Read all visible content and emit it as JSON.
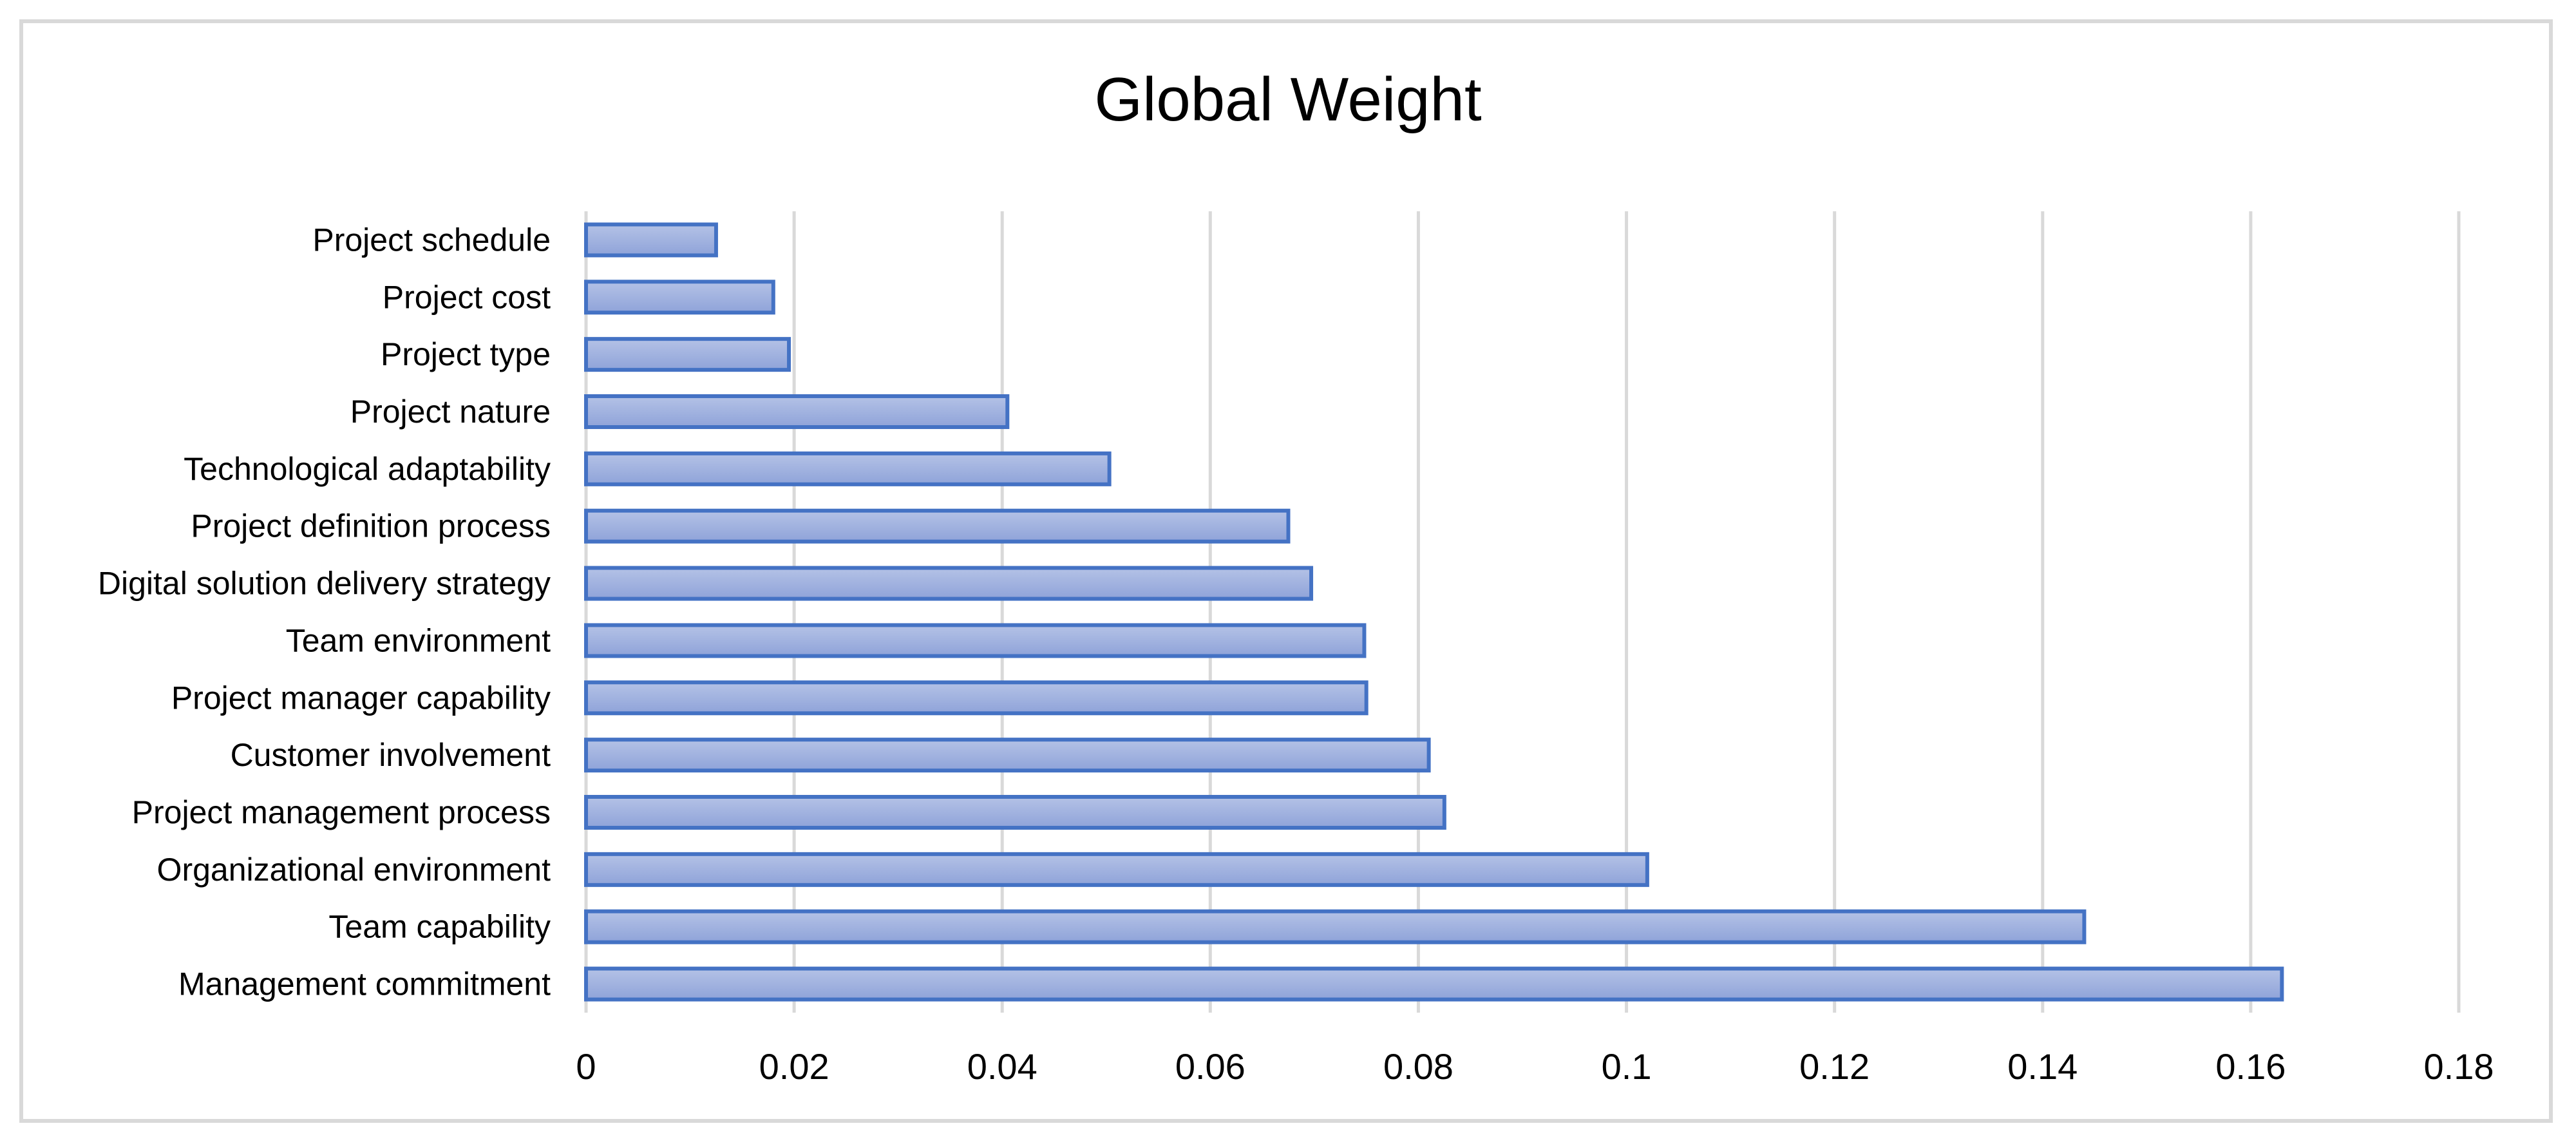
{
  "chart_data": {
    "type": "bar",
    "orientation": "horizontal",
    "title": "Global Weight",
    "xlabel": "",
    "ylabel": "",
    "categories": [
      "Project schedule",
      "Project cost",
      "Project type",
      "Project nature",
      "Technological adaptability",
      "Project definition process",
      "Digital solution delivery strategy",
      "Team environment",
      "Project manager capability",
      "Customer involvement",
      "Project management process",
      "Organizational environment",
      "Team capability",
      "Management commitment"
    ],
    "values": [
      0.0125,
      0.018,
      0.0195,
      0.0405,
      0.0503,
      0.0675,
      0.0697,
      0.0748,
      0.075,
      0.081,
      0.0825,
      0.102,
      0.144,
      0.163
    ],
    "xlim": [
      0,
      0.18
    ],
    "x_ticks": [
      "0",
      "0.02",
      "0.04",
      "0.06",
      "0.08",
      "0.1",
      "0.12",
      "0.14",
      "0.16",
      "0.18"
    ],
    "grid": true,
    "legend": "none",
    "colors": {
      "bar_fill_top": "#b4c2e6",
      "bar_fill_bottom": "#8fa3d9",
      "bar_stroke": "#4472c4",
      "gridline": "#d9d9d9"
    }
  }
}
